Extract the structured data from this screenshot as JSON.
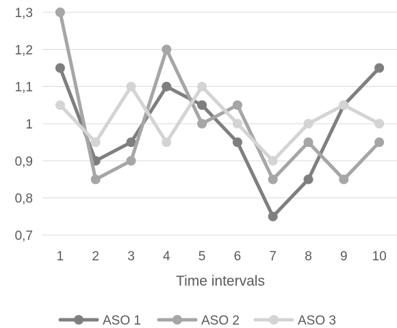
{
  "chart_data": {
    "type": "line",
    "title": "",
    "xlabel": "Time intervals",
    "ylabel": "",
    "categories": [
      "1",
      "2",
      "3",
      "4",
      "5",
      "6",
      "7",
      "8",
      "9",
      "10"
    ],
    "ylim": [
      0.7,
      1.3
    ],
    "ytick_values": [
      0.7,
      0.8,
      0.9,
      1.0,
      1.1,
      1.2,
      1.3
    ],
    "ytick_labels": [
      "0,7",
      "0,8",
      "0,9",
      "1",
      "1,1",
      "1,2",
      "1,3"
    ],
    "grid": true,
    "legend_position": "bottom",
    "series": [
      {
        "name": "ASO 1",
        "color": "#7f7f7f",
        "values": [
          1.15,
          0.9,
          0.95,
          1.1,
          1.05,
          0.95,
          0.75,
          0.85,
          1.05,
          1.15
        ]
      },
      {
        "name": "ASO 2",
        "color": "#a6a6a6",
        "values": [
          1.3,
          0.85,
          0.9,
          1.2,
          1.0,
          1.05,
          0.85,
          0.95,
          0.85,
          0.95
        ]
      },
      {
        "name": "ASO 3",
        "color": "#d4d4d4",
        "values": [
          1.05,
          0.95,
          1.1,
          0.95,
          1.1,
          1.0,
          0.9,
          1.0,
          1.05,
          1.0
        ]
      }
    ]
  }
}
